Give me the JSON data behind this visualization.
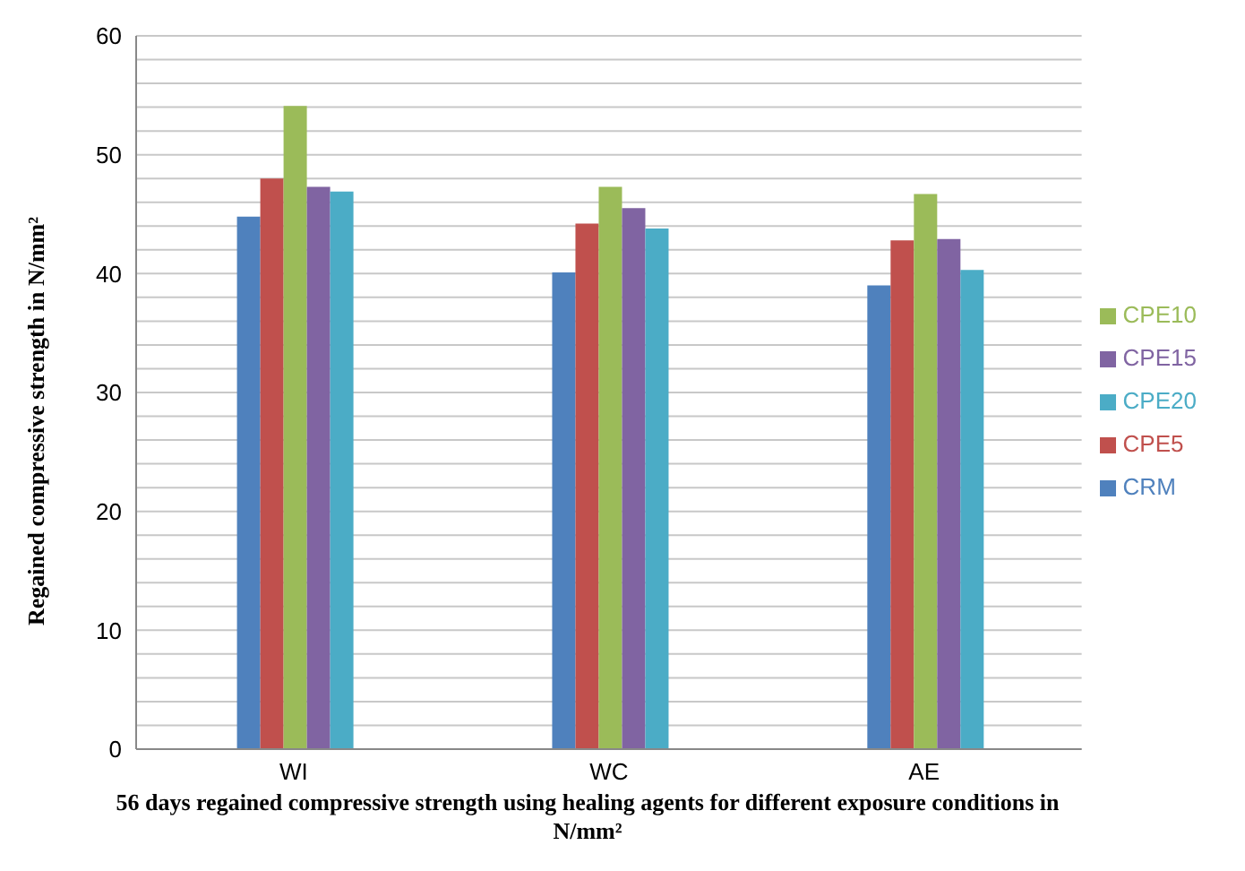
{
  "chart_data": {
    "type": "bar",
    "xlabel": "56 days regained compressive strength using healing agents  for different exposure conditions in N/mm²",
    "ylabel": "Regained compressive strength in N/mm²",
    "categories": [
      "WI",
      "WC",
      "AE"
    ],
    "series": [
      {
        "name": "CRM",
        "color": "#4f81bd",
        "values": [
          44.8,
          40.1,
          39.0
        ]
      },
      {
        "name": "CPE5",
        "color": "#c0504d",
        "values": [
          48.0,
          44.2,
          42.8
        ]
      },
      {
        "name": "CPE10",
        "color": "#9bbb59",
        "values": [
          54.1,
          47.3,
          46.7
        ]
      },
      {
        "name": "CPE15",
        "color": "#8064a2",
        "values": [
          47.3,
          45.5,
          42.9
        ]
      },
      {
        "name": "CPE20",
        "color": "#4bacc6",
        "values": [
          46.9,
          43.8,
          40.3
        ]
      }
    ],
    "ylim": [
      0,
      60
    ],
    "yticks": [
      0,
      {
        "value": 2,
        "label": null
      },
      {
        "value": 4,
        "label": null
      },
      {
        "value": 6,
        "label": null
      },
      {
        "value": 8,
        "label": null
      },
      10,
      {
        "value": 12,
        "label": null
      },
      {
        "value": 14,
        "label": null
      },
      {
        "value": 16,
        "label": null
      },
      {
        "value": 18,
        "label": null
      },
      20,
      {
        "value": 22,
        "label": null
      },
      {
        "value": 24,
        "label": null
      },
      {
        "value": 26,
        "label": null
      },
      {
        "value": 28,
        "label": null
      },
      30,
      {
        "value": 32,
        "label": null
      },
      {
        "value": 34,
        "label": null
      },
      {
        "value": 36,
        "label": null
      },
      {
        "value": 38,
        "label": null
      },
      40,
      {
        "value": 42,
        "label": null
      },
      {
        "value": 44,
        "label": null
      },
      {
        "value": 46,
        "label": null
      },
      {
        "value": 48,
        "label": null
      },
      50,
      {
        "value": 52,
        "label": null
      },
      {
        "value": 54,
        "label": null
      },
      {
        "value": 56,
        "label": null
      },
      {
        "value": 58,
        "label": null
      },
      60
    ],
    "grid": "y",
    "legend": "right"
  }
}
